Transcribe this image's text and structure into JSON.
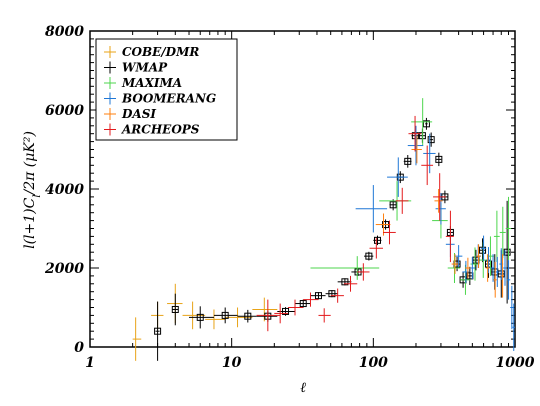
{
  "chart_data": {
    "type": "scatter",
    "title": "",
    "xlabel": "ℓ",
    "ylabel": "l(l+1)C",
    "ylabel_sub": "l",
    "ylabel_tail": "/2π (μK²)",
    "x_scale": "log",
    "xlim": [
      1,
      1000
    ],
    "ylim": [
      0,
      8000
    ],
    "x_ticks": [
      1,
      10,
      100,
      1000
    ],
    "x_tick_labels": [
      "1",
      "10",
      "100",
      "1000"
    ],
    "y_ticks": [
      0,
      2000,
      4000,
      6000,
      8000
    ],
    "y_tick_labels": [
      "0",
      "2000",
      "4000",
      "6000",
      "8000"
    ],
    "legend_position": "top-left",
    "series": [
      {
        "name": "COBE/DMR",
        "color": "#e8a317",
        "marker": "plus",
        "points": [
          {
            "x": 2.1,
            "y": 200,
            "xlo": 2,
            "xhi": 2.3,
            "dy": 550
          },
          {
            "x": 3,
            "y": 800,
            "xlo": 2.7,
            "xhi": 3.3,
            "dy": 350
          },
          {
            "x": 4,
            "y": 1100,
            "xlo": 3.5,
            "xhi": 4.5,
            "dy": 500
          },
          {
            "x": 5.3,
            "y": 800,
            "xlo": 4.5,
            "xhi": 6.5,
            "dy": 350
          },
          {
            "x": 7.5,
            "y": 700,
            "xlo": 6.5,
            "xhi": 9,
            "dy": 250
          },
          {
            "x": 11,
            "y": 750,
            "xlo": 9,
            "xhi": 14,
            "dy": 250
          },
          {
            "x": 17,
            "y": 950,
            "xlo": 14,
            "xhi": 21,
            "dy": 300
          }
        ]
      },
      {
        "name": "WMAP",
        "color": "#000000",
        "marker": "box",
        "points": [
          {
            "x": 3,
            "y": 400,
            "xlo": 2.9,
            "xhi": 3.1,
            "dy": 750
          },
          {
            "x": 4,
            "y": 950,
            "xlo": 3.8,
            "xhi": 4.2,
            "dy": 400
          },
          {
            "x": 6,
            "y": 750,
            "xlo": 5,
            "xhi": 7.5,
            "dy": 280
          },
          {
            "x": 9,
            "y": 800,
            "xlo": 7.5,
            "xhi": 11,
            "dy": 200
          },
          {
            "x": 13,
            "y": 780,
            "xlo": 11,
            "xhi": 15,
            "dy": 160
          },
          {
            "x": 18,
            "y": 780,
            "xlo": 15,
            "xhi": 21,
            "dy": 140
          },
          {
            "x": 24,
            "y": 900,
            "xlo": 21,
            "xhi": 28,
            "dy": 110
          },
          {
            "x": 32,
            "y": 1100,
            "xlo": 28,
            "xhi": 36,
            "dy": 100
          },
          {
            "x": 41,
            "y": 1300,
            "xlo": 36,
            "xhi": 46,
            "dy": 90
          },
          {
            "x": 51,
            "y": 1350,
            "xlo": 46,
            "xhi": 56,
            "dy": 90
          },
          {
            "x": 63,
            "y": 1650,
            "xlo": 56,
            "xhi": 70,
            "dy": 90
          },
          {
            "x": 78,
            "y": 1900,
            "xlo": 70,
            "xhi": 86,
            "dy": 100
          },
          {
            "x": 93,
            "y": 2300,
            "xlo": 86,
            "xhi": 100,
            "dy": 110
          },
          {
            "x": 107,
            "y": 2700,
            "xlo": 100,
            "xhi": 114,
            "dy": 120
          },
          {
            "x": 122,
            "y": 3100,
            "xlo": 114,
            "xhi": 130,
            "dy": 130
          },
          {
            "x": 138,
            "y": 3600,
            "xlo": 130,
            "xhi": 146,
            "dy": 140
          },
          {
            "x": 155,
            "y": 4300,
            "xlo": 146,
            "xhi": 164,
            "dy": 150
          },
          {
            "x": 175,
            "y": 4700,
            "xlo": 164,
            "xhi": 186,
            "dy": 160
          },
          {
            "x": 198,
            "y": 5350,
            "xlo": 186,
            "xhi": 210,
            "dy": 170
          },
          {
            "x": 222,
            "y": 5350,
            "xlo": 210,
            "xhi": 234,
            "dy": 180
          },
          {
            "x": 237,
            "y": 5650,
            "xlo": 232,
            "xhi": 242,
            "dy": 150
          },
          {
            "x": 256,
            "y": 5250,
            "xlo": 248,
            "xhi": 264,
            "dy": 180
          },
          {
            "x": 290,
            "y": 4750,
            "xlo": 278,
            "xhi": 302,
            "dy": 170
          },
          {
            "x": 320,
            "y": 3800,
            "xlo": 306,
            "xhi": 334,
            "dy": 160
          },
          {
            "x": 350,
            "y": 2900,
            "xlo": 334,
            "xhi": 366,
            "dy": 160
          },
          {
            "x": 390,
            "y": 2100,
            "xlo": 370,
            "xhi": 410,
            "dy": 180
          },
          {
            "x": 430,
            "y": 1700,
            "xlo": 410,
            "xhi": 450,
            "dy": 200
          },
          {
            "x": 480,
            "y": 1800,
            "xlo": 455,
            "xhi": 505,
            "dy": 230
          },
          {
            "x": 530,
            "y": 2200,
            "xlo": 505,
            "xhi": 555,
            "dy": 260
          },
          {
            "x": 590,
            "y": 2450,
            "xlo": 560,
            "xhi": 620,
            "dy": 300
          },
          {
            "x": 650,
            "y": 2100,
            "xlo": 620,
            "xhi": 680,
            "dy": 350
          },
          {
            "x": 720,
            "y": 1900,
            "xlo": 680,
            "xhi": 760,
            "dy": 450
          },
          {
            "x": 800,
            "y": 1850,
            "xlo": 760,
            "xhi": 840,
            "dy": 600
          },
          {
            "x": 880,
            "y": 2400,
            "xlo": 840,
            "xhi": 920,
            "dy": 1300
          }
        ]
      },
      {
        "name": "MAXIMA",
        "color": "#4cd64c",
        "marker": "plus",
        "points": [
          {
            "x": 77,
            "y": 2000,
            "xlo": 36,
            "xhi": 110,
            "dy": 300
          },
          {
            "x": 147,
            "y": 3700,
            "xlo": 110,
            "xhi": 185,
            "dy": 500
          },
          {
            "x": 223,
            "y": 5700,
            "xlo": 185,
            "xhi": 260,
            "dy": 600
          },
          {
            "x": 300,
            "y": 3200,
            "xlo": 260,
            "xhi": 335,
            "dy": 450
          },
          {
            "x": 374,
            "y": 2000,
            "xlo": 335,
            "xhi": 410,
            "dy": 380
          },
          {
            "x": 447,
            "y": 1700,
            "xlo": 410,
            "xhi": 485,
            "dy": 380
          },
          {
            "x": 522,
            "y": 2100,
            "xlo": 485,
            "xhi": 560,
            "dy": 420
          },
          {
            "x": 597,
            "y": 2200,
            "xlo": 560,
            "xhi": 635,
            "dy": 450
          },
          {
            "x": 671,
            "y": 2300,
            "xlo": 635,
            "xhi": 710,
            "dy": 500
          },
          {
            "x": 745,
            "y": 2800,
            "xlo": 710,
            "xhi": 780,
            "dy": 650
          },
          {
            "x": 820,
            "y": 2900,
            "xlo": 780,
            "xhi": 860,
            "dy": 650
          },
          {
            "x": 900,
            "y": 3000,
            "xlo": 860,
            "xhi": 940,
            "dy": 800
          }
        ]
      },
      {
        "name": "BOOMERANG",
        "color": "#1f77d6",
        "marker": "plus",
        "points": [
          {
            "x": 100,
            "y": 3500,
            "xlo": 75,
            "xhi": 125,
            "dy": 600
          },
          {
            "x": 150,
            "y": 4300,
            "xlo": 125,
            "xhi": 175,
            "dy": 500
          },
          {
            "x": 200,
            "y": 5100,
            "xlo": 175,
            "xhi": 225,
            "dy": 500
          },
          {
            "x": 250,
            "y": 4900,
            "xlo": 225,
            "xhi": 275,
            "dy": 500
          },
          {
            "x": 300,
            "y": 3500,
            "xlo": 275,
            "xhi": 325,
            "dy": 400
          },
          {
            "x": 350,
            "y": 2600,
            "xlo": 325,
            "xhi": 375,
            "dy": 320
          },
          {
            "x": 400,
            "y": 2300,
            "xlo": 375,
            "xhi": 425,
            "dy": 280
          },
          {
            "x": 450,
            "y": 1900,
            "xlo": 425,
            "xhi": 475,
            "dy": 280
          },
          {
            "x": 500,
            "y": 2000,
            "xlo": 475,
            "xhi": 525,
            "dy": 280
          },
          {
            "x": 550,
            "y": 2300,
            "xlo": 525,
            "xhi": 575,
            "dy": 300
          },
          {
            "x": 600,
            "y": 2500,
            "xlo": 575,
            "xhi": 625,
            "dy": 320
          },
          {
            "x": 650,
            "y": 2200,
            "xlo": 625,
            "xhi": 675,
            "dy": 330
          },
          {
            "x": 700,
            "y": 2000,
            "xlo": 675,
            "xhi": 725,
            "dy": 350
          },
          {
            "x": 750,
            "y": 1900,
            "xlo": 725,
            "xhi": 775,
            "dy": 380
          },
          {
            "x": 800,
            "y": 2100,
            "xlo": 775,
            "xhi": 825,
            "dy": 400
          },
          {
            "x": 850,
            "y": 2000,
            "xlo": 825,
            "xhi": 875,
            "dy": 450
          },
          {
            "x": 900,
            "y": 1700,
            "xlo": 875,
            "xhi": 925,
            "dy": 500
          },
          {
            "x": 950,
            "y": 1000,
            "xlo": 925,
            "xhi": 975,
            "dy": 550
          },
          {
            "x": 980,
            "y": 500,
            "xlo": 960,
            "xhi": 1000,
            "dy": 600
          }
        ]
      },
      {
        "name": "DASI",
        "color": "#ff7f0e",
        "marker": "plus",
        "points": [
          {
            "x": 118,
            "y": 3100,
            "xlo": 104,
            "xhi": 132,
            "dy": 280
          },
          {
            "x": 203,
            "y": 5000,
            "xlo": 186,
            "xhi": 220,
            "dy": 350
          },
          {
            "x": 289,
            "y": 3700,
            "xlo": 270,
            "xhi": 308,
            "dy": 300
          },
          {
            "x": 377,
            "y": 2100,
            "xlo": 357,
            "xhi": 397,
            "dy": 250
          },
          {
            "x": 465,
            "y": 2000,
            "xlo": 445,
            "xhi": 485,
            "dy": 260
          },
          {
            "x": 553,
            "y": 2300,
            "xlo": 533,
            "xhi": 573,
            "dy": 300
          },
          {
            "x": 641,
            "y": 2000,
            "xlo": 621,
            "xhi": 661,
            "dy": 350
          },
          {
            "x": 725,
            "y": 1700,
            "xlo": 705,
            "xhi": 745,
            "dy": 450
          },
          {
            "x": 817,
            "y": 1800,
            "xlo": 797,
            "xhi": 837,
            "dy": 550
          }
        ]
      },
      {
        "name": "ARCHEOPS",
        "color": "#e31a1c",
        "marker": "plus",
        "points": [
          {
            "x": 18,
            "y": 800,
            "xlo": 15,
            "xhi": 22,
            "dy": 400
          },
          {
            "x": 22,
            "y": 850,
            "xlo": 20,
            "xhi": 25,
            "dy": 250
          },
          {
            "x": 28,
            "y": 1000,
            "xlo": 25,
            "xhi": 32,
            "dy": 200
          },
          {
            "x": 36,
            "y": 1200,
            "xlo": 32,
            "xhi": 41,
            "dy": 180
          },
          {
            "x": 45,
            "y": 800,
            "xlo": 41,
            "xhi": 50,
            "dy": 180
          },
          {
            "x": 56,
            "y": 1300,
            "xlo": 50,
            "xhi": 62,
            "dy": 180
          },
          {
            "x": 69,
            "y": 1600,
            "xlo": 62,
            "xhi": 77,
            "dy": 200
          },
          {
            "x": 85,
            "y": 1900,
            "xlo": 77,
            "xhi": 94,
            "dy": 220
          },
          {
            "x": 105,
            "y": 2500,
            "xlo": 94,
            "xhi": 117,
            "dy": 260
          },
          {
            "x": 130,
            "y": 2900,
            "xlo": 117,
            "xhi": 144,
            "dy": 300
          },
          {
            "x": 160,
            "y": 3700,
            "xlo": 144,
            "xhi": 177,
            "dy": 330
          },
          {
            "x": 197,
            "y": 5400,
            "xlo": 177,
            "xhi": 218,
            "dy": 450
          },
          {
            "x": 240,
            "y": 4600,
            "xlo": 218,
            "xhi": 264,
            "dy": 500
          },
          {
            "x": 294,
            "y": 3800,
            "xlo": 264,
            "xhi": 325,
            "dy": 600
          },
          {
            "x": 350,
            "y": 2800,
            "xlo": 325,
            "xhi": 370,
            "dy": 650
          }
        ]
      }
    ]
  }
}
